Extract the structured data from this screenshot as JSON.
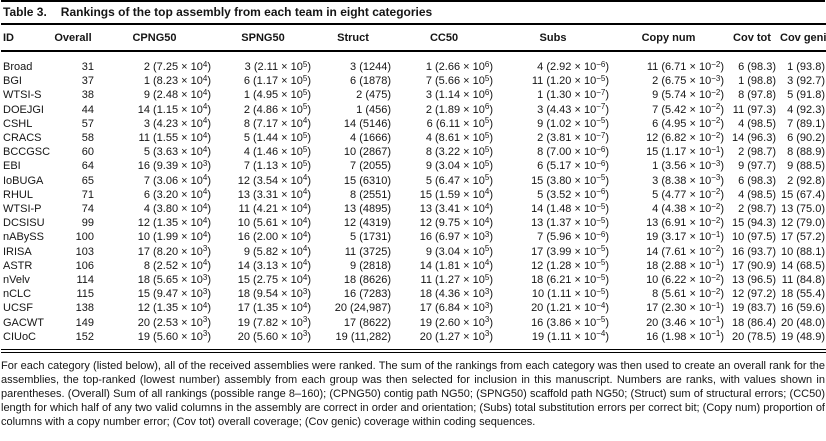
{
  "caption": {
    "label": "Table 3.",
    "text": "Rankings of the top assembly from each team in eight categories"
  },
  "table": {
    "columns": [
      "ID",
      "Overall",
      "CPNG50",
      "SPNG50",
      "Struct",
      "CC50",
      "Subs",
      "Copy num",
      "Cov tot",
      "Cov genic"
    ],
    "rows": [
      [
        "Broad",
        "31",
        "2 (7.25 × 10^4)",
        "3 (2.11 × 10^5)",
        "3 (1244)",
        "1 (2.66 × 10^6)",
        "4 (2.92 × 10^−6)",
        "11 (6.71 × 10^−2)",
        "6 (98.3)",
        "1 (93.8)"
      ],
      [
        "BGI",
        "37",
        "1 (8.23 × 10^4)",
        "6 (1.17 × 10^5)",
        "6 (1878)",
        "7 (5.66 × 10^5)",
        "11 (1.20 × 10^−5)",
        "2 (6.75 × 10^−3)",
        "1 (98.8)",
        "3 (92.7)"
      ],
      [
        "WTSI-S",
        "38",
        "9 (2.48 × 10^4)",
        "1 (4.95 × 10^5)",
        "2 (475)",
        "3 (1.14 × 10^6)",
        "1 (1.30 × 10^−7)",
        "9 (5.74 × 10^−2)",
        "8 (97.8)",
        "5 (91.8)"
      ],
      [
        "DOEJGI",
        "44",
        "14 (1.15 × 10^4)",
        "2 (4.86 × 10^5)",
        "1 (456)",
        "2 (1.89 × 10^6)",
        "3 (4.43 × 10^−7)",
        "7 (5.42 × 10^−2)",
        "11 (97.3)",
        "4 (92.3)"
      ],
      [
        "CSHL",
        "57",
        "3 (4.23 × 10^4)",
        "8 (7.17 × 10^4)",
        "14 (5146)",
        "6 (6.11 × 10^5)",
        "9 (1.02 × 10^−5)",
        "6 (4.95 × 10^−2)",
        "4 (98.5)",
        "7 (89.1)"
      ],
      [
        "CRACS",
        "58",
        "11 (1.55 × 10^4)",
        "5 (1.44 × 10^5)",
        "4 (1666)",
        "4 (8.61 × 10^5)",
        "2 (3.81 × 10^−7)",
        "12 (6.82 × 10^−2)",
        "14 (96.3)",
        "6 (90.2)"
      ],
      [
        "BCCGSC",
        "60",
        "5 (3.63 × 10^4)",
        "4 (1.46 × 10^5)",
        "10 (2867)",
        "8 (3.22 × 10^5)",
        "8 (7.00 × 10^−6)",
        "15 (1.17 × 10^−1)",
        "2 (98.7)",
        "8 (88.9)"
      ],
      [
        "EBI",
        "64",
        "16 (9.39 × 10^3)",
        "7 (1.13 × 10^5)",
        "7 (2055)",
        "9 (3.04 × 10^5)",
        "6 (5.17 × 10^−6)",
        "1 (3.56 × 10^−3)",
        "9 (97.7)",
        "9 (88.5)"
      ],
      [
        "IoBUGA",
        "65",
        "7 (3.06 × 10^4)",
        "12 (3.54 × 10^4)",
        "15 (6310)",
        "5 (6.47 × 10^5)",
        "15 (3.80 × 10^−5)",
        "3 (8.38 × 10^−3)",
        "6 (98.3)",
        "2 (92.8)"
      ],
      [
        "RHUL",
        "71",
        "6 (3.20 × 10^4)",
        "13 (3.31 × 10^4)",
        "8 (2551)",
        "15 (1.59 × 10^4)",
        "5 (3.52 × 10^−6)",
        "5 (4.77 × 10^−2)",
        "4 (98.5)",
        "15 (67.4)"
      ],
      [
        "WTSI-P",
        "74",
        "4 (3.80 × 10^4)",
        "11 (4.21 × 10^4)",
        "13 (4895)",
        "13 (3.41 × 10^4)",
        "14 (1.48 × 10^−5)",
        "4 (4.38 × 10^−2)",
        "2 (98.7)",
        "13 (75.0)"
      ],
      [
        "DCSISU",
        "99",
        "12 (1.35 × 10^4)",
        "10 (5.61 × 10^4)",
        "12 (4319)",
        "12 (9.75 × 10^4)",
        "13 (1.37 × 10^−5)",
        "13 (6.91 × 10^−2)",
        "15 (94.3)",
        "12 (79.0)"
      ],
      [
        "nABySS",
        "100",
        "10 (1.99 × 10^4)",
        "16 (2.00 × 10^4)",
        "5 (1731)",
        "16 (6.97 × 10^3)",
        "7 (5.96 × 10^−6)",
        "19 (3.17 × 10^−1)",
        "10 (97.5)",
        "17 (57.2)"
      ],
      [
        "IRISA",
        "103",
        "17 (8.20 × 10^3)",
        "9 (5.82 × 10^4)",
        "11 (3725)",
        "9 (3.04 × 10^5)",
        "17 (3.99 × 10^−5)",
        "14 (7.61 × 10^−2)",
        "16 (93.7)",
        "10 (88.1)"
      ],
      [
        "ASTR",
        "106",
        "8 (2.52 × 10^4)",
        "14 (3.13 × 10^4)",
        "9 (2818)",
        "14 (1.81 × 10^4)",
        "12 (1.28 × 10^−5)",
        "18 (2.88 × 10^−1)",
        "17 (90.9)",
        "14 (68.5)"
      ],
      [
        "nVelv",
        "114",
        "18 (5.65 × 10^3)",
        "15 (2.75 × 10^4)",
        "18 (8626)",
        "11 (1.27 × 10^5)",
        "18 (6.21 × 10^−5)",
        "10 (6.22 × 10^−2)",
        "13 (96.5)",
        "11 (84.8)"
      ],
      [
        "nCLC",
        "115",
        "15 (9.47 × 10^3)",
        "18 (9.54 × 10^3)",
        "16 (7283)",
        "18 (4.36 × 10^3)",
        "10 (1.11 × 10^−5)",
        "8 (5.61 × 10^−2)",
        "12 (97.2)",
        "18 (55.4)"
      ],
      [
        "UCSF",
        "138",
        "12 (1.35 × 10^4)",
        "17 (1.35 × 10^4)",
        "20 (24,987)",
        "17 (6.84 × 10^3)",
        "20 (1.21 × 10^−4)",
        "17 (2.30 × 10^−1)",
        "19 (83.7)",
        "16 (59.6)"
      ],
      [
        "GACWT",
        "149",
        "20 (2.53 × 10^3)",
        "19 (7.82 × 10^3)",
        "17 (8622)",
        "19 (2.60 × 10^3)",
        "16 (3.86 × 10^−5)",
        "20 (3.46 × 10^−1)",
        "18 (86.4)",
        "20 (48.0)"
      ],
      [
        "CIUoC",
        "152",
        "19 (5.60 × 10^3)",
        "20 (5.60 × 10^3)",
        "19 (11,282)",
        "20 (1.27 × 10^3)",
        "19 (1.11 × 10^−4)",
        "16 (1.98 × 10^−1)",
        "20 (78.5)",
        "19 (48.9)"
      ]
    ]
  },
  "footnote": "For each category (listed below), all of the received assemblies were ranked. The sum of the rankings from each category was then used to create an overall rank for the assemblies, the top-ranked (lowest number) assembly from each group was then selected for inclusion in this manuscript. Numbers are ranks, with values shown in parentheses. (Overall) Sum of all rankings (possible range 8–160); (CPNG50) contig path NG50; (SPNG50) scaffold path NG50; (Struct) sum of structural errors; (CC50) length for which half of any two valid columns in the assembly are correct in order and orientation; (Subs) total substitution errors per correct bit; (Copy num) proportion of columns with a copy number error; (Cov tot) overall coverage; (Cov genic) coverage within coding sequences.",
  "colors": {
    "text": "#151515",
    "background": "#ffffff",
    "rule": "#000000"
  }
}
